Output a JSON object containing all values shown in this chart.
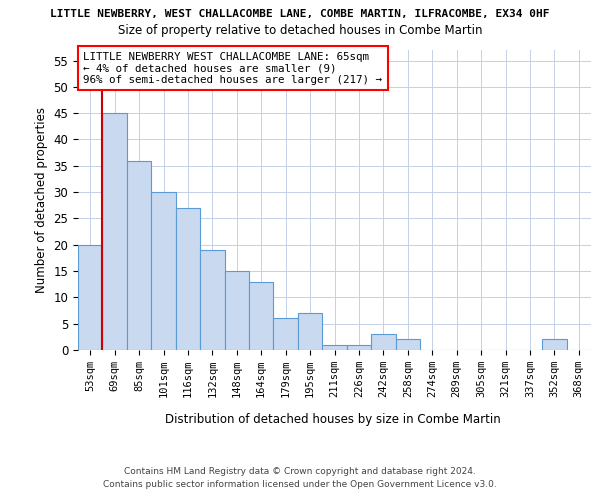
{
  "title_line1": "LITTLE NEWBERRY, WEST CHALLACOMBE LANE, COMBE MARTIN, ILFRACOMBE, EX34 0HF",
  "title_line2": "Size of property relative to detached houses in Combe Martin",
  "xlabel": "Distribution of detached houses by size in Combe Martin",
  "ylabel": "Number of detached properties",
  "categories": [
    "53sqm",
    "69sqm",
    "85sqm",
    "101sqm",
    "116sqm",
    "132sqm",
    "148sqm",
    "164sqm",
    "179sqm",
    "195sqm",
    "211sqm",
    "226sqm",
    "242sqm",
    "258sqm",
    "274sqm",
    "289sqm",
    "305sqm",
    "321sqm",
    "337sqm",
    "352sqm",
    "368sqm"
  ],
  "values": [
    20,
    45,
    36,
    30,
    27,
    19,
    15,
    13,
    6,
    7,
    1,
    1,
    3,
    2,
    0,
    0,
    0,
    0,
    0,
    2,
    0
  ],
  "bar_color": "#c8d9f0",
  "bar_edge_color": "#5b9bd5",
  "vline_x": 1.0,
  "vline_color": "#cc0000",
  "annotation_line1": "LITTLE NEWBERRY WEST CHALLACOMBE LANE: 65sqm",
  "annotation_line2": "← 4% of detached houses are smaller (9)",
  "annotation_line3": "96% of semi-detached houses are larger (217) →",
  "ylim": [
    0,
    57
  ],
  "yticks": [
    0,
    5,
    10,
    15,
    20,
    25,
    30,
    35,
    40,
    45,
    50,
    55
  ],
  "grid_color": "#c5d0e8",
  "bg_color": "#ffffff",
  "footer_line1": "Contains HM Land Registry data © Crown copyright and database right 2024.",
  "footer_line2": "Contains public sector information licensed under the Open Government Licence v3.0."
}
